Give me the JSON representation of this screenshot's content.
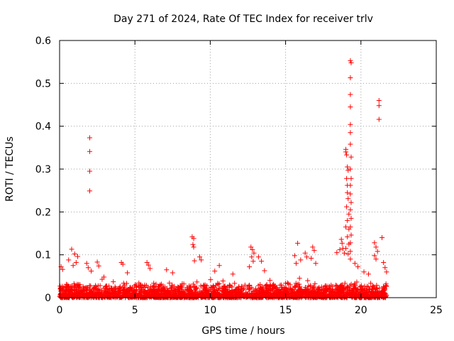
{
  "chart_data": {
    "type": "scatter",
    "title": "Day 271 of 2024, Rate Of TEC Index for receiver trlv",
    "xlabel": "GPS time / hours",
    "ylabel": "ROTI / TECUs",
    "xlim": [
      0,
      25
    ],
    "ylim": [
      0,
      0.6
    ],
    "xticks": [
      0,
      5,
      10,
      15,
      20,
      25
    ],
    "yticks": [
      0,
      0.1,
      0.2,
      0.3,
      0.4,
      0.5,
      0.6
    ],
    "xtick_labels": [
      "0",
      "5",
      "10",
      "15",
      "20",
      "25"
    ],
    "ytick_labels": [
      "0",
      "0.1",
      "0.2",
      "0.3",
      "0.4",
      "0.5",
      "0.6"
    ],
    "grid": true,
    "marker": "+",
    "color": "#ff0000",
    "series": [
      {
        "name": "ROTI",
        "description": "dense baseline of ROTI values between 0 and ~0.04 TECU/min from 0 to 21.7 h, with notable outliers listed below",
        "points": [
          [
            2.0,
            0.373
          ],
          [
            2.0,
            0.341
          ],
          [
            2.0,
            0.295
          ],
          [
            2.0,
            0.249
          ],
          [
            0.8,
            0.113
          ],
          [
            1.0,
            0.102
          ],
          [
            1.2,
            0.096
          ],
          [
            0.6,
            0.088
          ],
          [
            1.1,
            0.082
          ],
          [
            0.9,
            0.075
          ],
          [
            0.1,
            0.072
          ],
          [
            0.2,
            0.066
          ],
          [
            1.8,
            0.08
          ],
          [
            1.9,
            0.07
          ],
          [
            2.1,
            0.062
          ],
          [
            2.5,
            0.083
          ],
          [
            2.6,
            0.074
          ],
          [
            4.1,
            0.082
          ],
          [
            4.2,
            0.078
          ],
          [
            4.5,
            0.058
          ],
          [
            5.8,
            0.082
          ],
          [
            5.9,
            0.076
          ],
          [
            6.0,
            0.068
          ],
          [
            7.1,
            0.065
          ],
          [
            7.5,
            0.058
          ],
          [
            8.8,
            0.142
          ],
          [
            8.9,
            0.138
          ],
          [
            8.85,
            0.124
          ],
          [
            8.9,
            0.118
          ],
          [
            8.95,
            0.086
          ],
          [
            9.3,
            0.095
          ],
          [
            9.4,
            0.088
          ],
          [
            10.3,
            0.062
          ],
          [
            10.6,
            0.075
          ],
          [
            11.5,
            0.055
          ],
          [
            12.7,
            0.118
          ],
          [
            12.8,
            0.112
          ],
          [
            12.9,
            0.104
          ],
          [
            12.75,
            0.095
          ],
          [
            12.85,
            0.085
          ],
          [
            12.6,
            0.072
          ],
          [
            13.2,
            0.095
          ],
          [
            13.4,
            0.085
          ],
          [
            13.6,
            0.063
          ],
          [
            15.8,
            0.127
          ],
          [
            15.6,
            0.098
          ],
          [
            16.0,
            0.088
          ],
          [
            15.7,
            0.08
          ],
          [
            16.3,
            0.104
          ],
          [
            16.4,
            0.095
          ],
          [
            16.8,
            0.118
          ],
          [
            16.9,
            0.11
          ],
          [
            16.7,
            0.092
          ],
          [
            17.0,
            0.08
          ],
          [
            18.4,
            0.105
          ],
          [
            18.6,
            0.112
          ],
          [
            18.7,
            0.136
          ],
          [
            18.75,
            0.127
          ],
          [
            18.8,
            0.115
          ],
          [
            18.9,
            0.104
          ],
          [
            19.0,
            0.346
          ],
          [
            19.0,
            0.34
          ],
          [
            19.05,
            0.333
          ],
          [
            19.1,
            0.305
          ],
          [
            19.15,
            0.297
          ],
          [
            19.05,
            0.278
          ],
          [
            19.1,
            0.262
          ],
          [
            19.1,
            0.245
          ],
          [
            19.15,
            0.231
          ],
          [
            19.05,
            0.212
          ],
          [
            19.2,
            0.195
          ],
          [
            19.1,
            0.18
          ],
          [
            19.0,
            0.165
          ],
          [
            19.2,
            0.16
          ],
          [
            19.1,
            0.142
          ],
          [
            19.2,
            0.125
          ],
          [
            19.0,
            0.115
          ],
          [
            19.15,
            0.102
          ],
          [
            19.3,
            0.553
          ],
          [
            19.35,
            0.548
          ],
          [
            19.3,
            0.513
          ],
          [
            19.3,
            0.474
          ],
          [
            19.3,
            0.445
          ],
          [
            19.3,
            0.404
          ],
          [
            19.3,
            0.385
          ],
          [
            19.3,
            0.358
          ],
          [
            19.35,
            0.328
          ],
          [
            19.3,
            0.3
          ],
          [
            19.35,
            0.278
          ],
          [
            19.3,
            0.262
          ],
          [
            19.3,
            0.242
          ],
          [
            19.35,
            0.222
          ],
          [
            19.3,
            0.205
          ],
          [
            19.35,
            0.185
          ],
          [
            19.3,
            0.165
          ],
          [
            19.35,
            0.146
          ],
          [
            19.3,
            0.128
          ],
          [
            19.3,
            0.108
          ],
          [
            19.3,
            0.09
          ],
          [
            19.6,
            0.08
          ],
          [
            19.8,
            0.072
          ],
          [
            20.2,
            0.06
          ],
          [
            20.5,
            0.055
          ],
          [
            21.2,
            0.46
          ],
          [
            21.2,
            0.448
          ],
          [
            21.2,
            0.416
          ],
          [
            20.9,
            0.128
          ],
          [
            21.0,
            0.118
          ],
          [
            21.1,
            0.108
          ],
          [
            20.9,
            0.098
          ],
          [
            21.0,
            0.09
          ],
          [
            21.4,
            0.14
          ],
          [
            21.5,
            0.082
          ],
          [
            21.6,
            0.07
          ],
          [
            21.7,
            0.06
          ]
        ]
      }
    ]
  }
}
